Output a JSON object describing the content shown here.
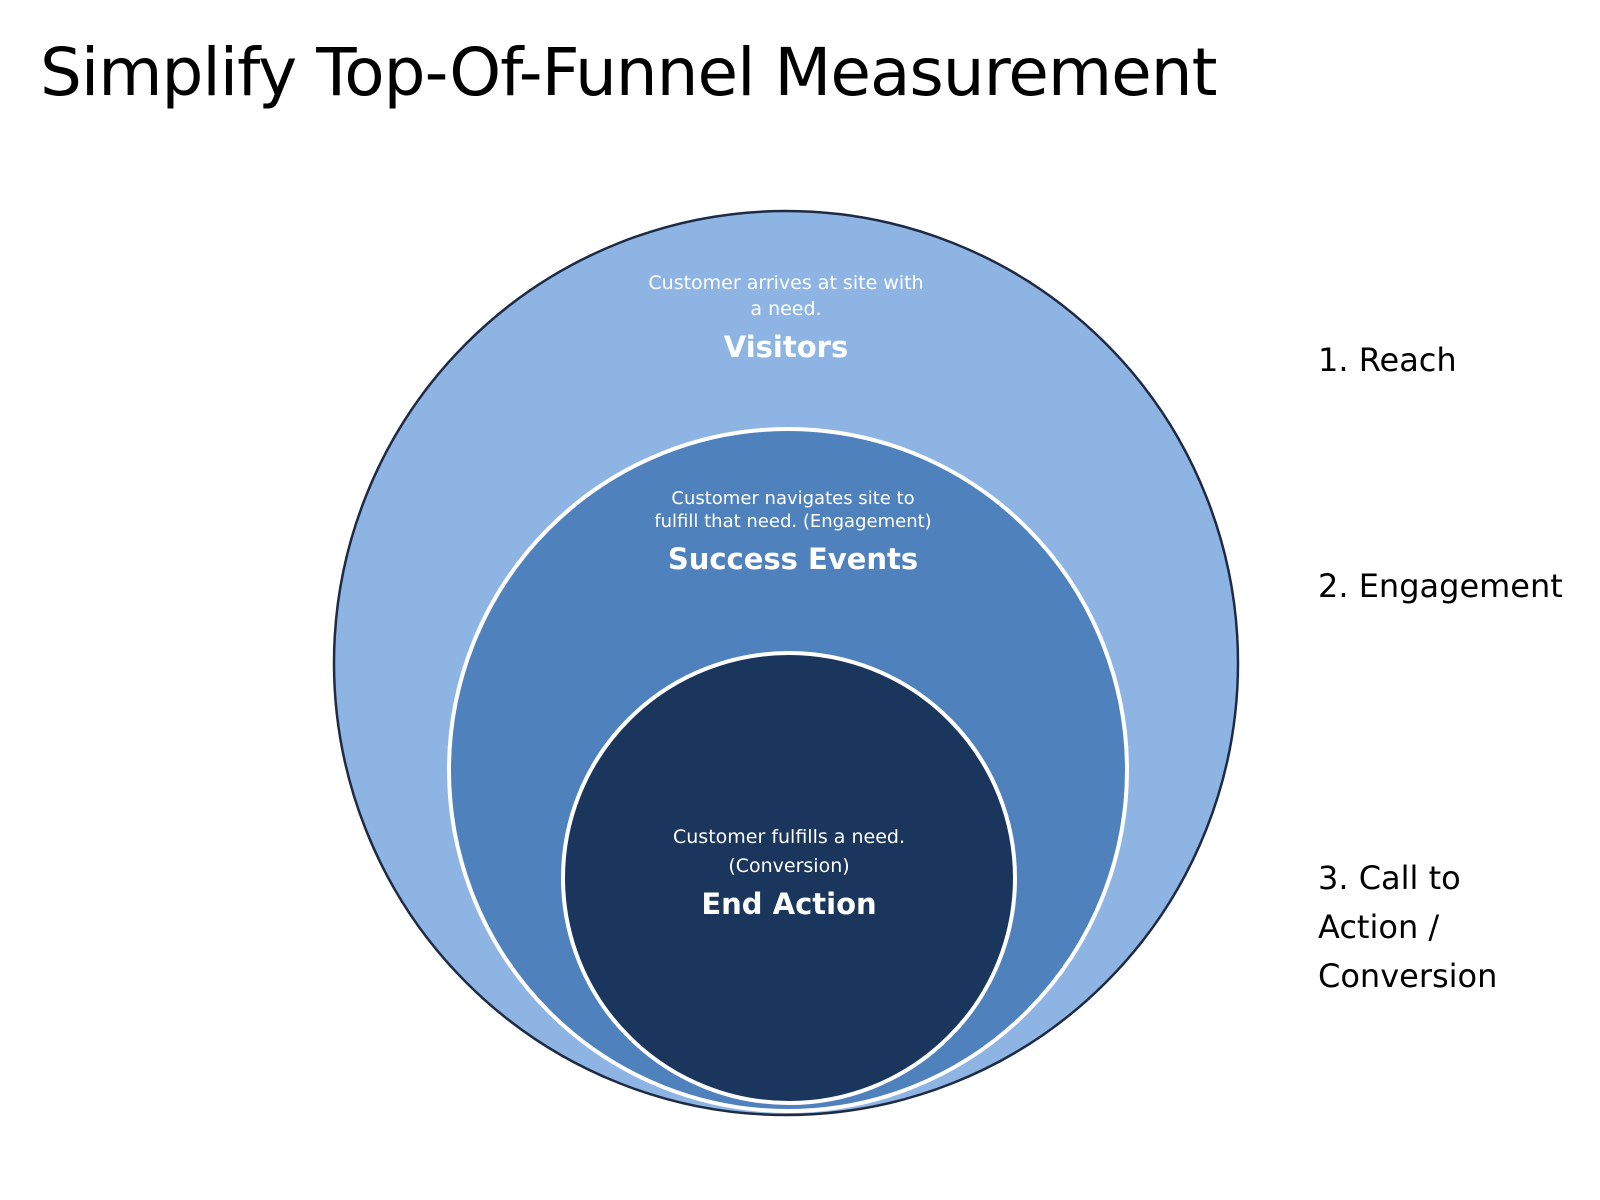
{
  "title": "Simplify Top-Of-Funnel Measurement",
  "colors": {
    "outer_fill": "#8EB4E3",
    "middle_fill": "#4F81BD",
    "inner_fill": "#1B365D",
    "outline": "#1F2A44",
    "ring_border": "#FFFFFF"
  },
  "circles": [
    {
      "description_lines": [
        "Customer arrives at site with",
        "a need."
      ],
      "label": "Visitors"
    },
    {
      "description_lines": [
        "Customer navigates site to",
        "fulfill that need. (Engagement)"
      ],
      "label": "Success Events"
    },
    {
      "description_lines": [
        "Customer fulfills a need.",
        "(Conversion)"
      ],
      "label": "End Action"
    }
  ],
  "stages": [
    {
      "lines": [
        "1. Reach"
      ]
    },
    {
      "lines": [
        "2. Engagement"
      ]
    },
    {
      "lines": [
        "3. Call to",
        "Action /",
        "Conversion"
      ]
    }
  ]
}
